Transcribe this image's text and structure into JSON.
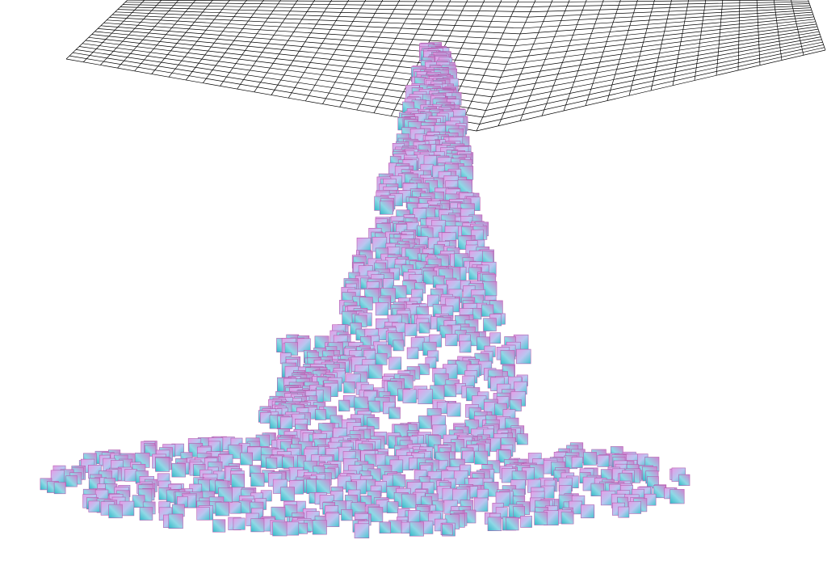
{
  "scene": {
    "description_free": true,
    "background_color": "#ffffff",
    "grid": {
      "visible": true,
      "line_color": "#000000",
      "divisions_u": 40,
      "divisions_v": 22
    },
    "particles": {
      "shape": "cube",
      "face_colors": [
        "#5fd3d9",
        "#d98ad6",
        "#7ab6e8",
        "#c66fc2"
      ],
      "edge_color": "#b35fb0"
    }
  }
}
